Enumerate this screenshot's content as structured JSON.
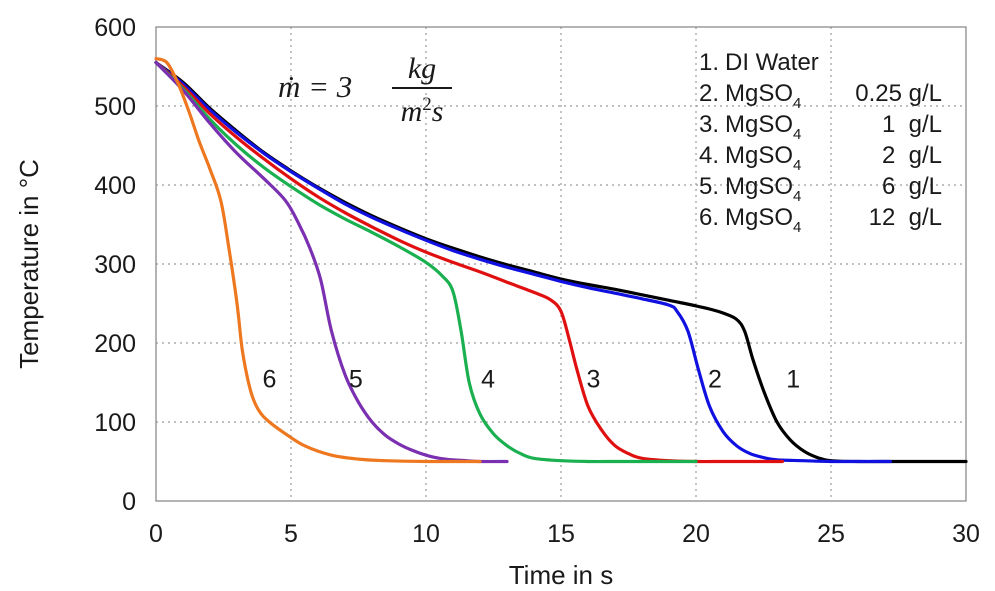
{
  "chart_data": {
    "type": "line",
    "xlabel": "Time in s",
    "ylabel": "Temperature in °C",
    "xlim": [
      0,
      30
    ],
    "ylim": [
      0,
      600
    ],
    "xticks": [
      0,
      5,
      10,
      15,
      20,
      25,
      30
    ],
    "yticks": [
      0,
      100,
      200,
      300,
      400,
      500,
      600
    ],
    "grid": true,
    "formula": {
      "lhs": "ṁ = 3",
      "numerator": "kg",
      "denominator_base": "m",
      "denominator_exp": "2",
      "denominator_tail": "s"
    },
    "legend": {
      "placement": "top-right",
      "entries": [
        {
          "index": "1.",
          "name": "DI Water",
          "sub": "",
          "conc": ""
        },
        {
          "index": "2.",
          "name": "MgSO",
          "sub": "4",
          "conc": "0.25 g/L"
        },
        {
          "index": "3.",
          "name": "MgSO",
          "sub": "4",
          "conc": "1  g/L"
        },
        {
          "index": "4.",
          "name": "MgSO",
          "sub": "4",
          "conc": "2  g/L"
        },
        {
          "index": "5.",
          "name": "MgSO",
          "sub": "4",
          "conc": "6  g/L"
        },
        {
          "index": "6.",
          "name": "MgSO",
          "sub": "4",
          "conc": "12  g/L"
        }
      ]
    },
    "series": [
      {
        "label": "1",
        "color": "#000000",
        "label_pos": [
          23.6,
          155
        ],
        "x": [
          0,
          1,
          2,
          3,
          4,
          5,
          6,
          7,
          8,
          9,
          10,
          11,
          12,
          13,
          14,
          15,
          16,
          17,
          18,
          19,
          20,
          20.5,
          21,
          21.5,
          21.8,
          22.1,
          22.5,
          23,
          23.5,
          24,
          24.5,
          25,
          26,
          27,
          28,
          29,
          30
        ],
        "y": [
          555,
          530,
          497,
          468,
          441,
          418,
          397,
          378,
          361,
          346,
          332,
          320,
          309,
          299,
          290,
          281,
          274,
          268,
          261,
          254,
          247,
          243,
          238,
          230,
          215,
          180,
          140,
          100,
          77,
          63,
          55,
          51,
          50,
          50,
          50,
          50,
          50
        ]
      },
      {
        "label": "2",
        "color": "#1010e0",
        "label_pos": [
          20.7,
          155
        ],
        "x": [
          0,
          1,
          2,
          3,
          4,
          5,
          6,
          7,
          8,
          9,
          10,
          11,
          12,
          13,
          14,
          15,
          16,
          17,
          18,
          19,
          19.3,
          19.7,
          20.1,
          20.5,
          21,
          21.5,
          22,
          22.5,
          23,
          24,
          25,
          26,
          27.2
        ],
        "y": [
          555,
          528,
          495,
          466,
          440,
          417,
          396,
          376,
          359,
          344,
          330,
          317,
          306,
          296,
          287,
          278,
          270,
          263,
          256,
          248,
          240,
          215,
          165,
          120,
          88,
          70,
          60,
          55,
          52,
          51,
          50,
          50,
          50
        ]
      },
      {
        "label": "3",
        "color": "#e01010",
        "label_pos": [
          16.2,
          155
        ],
        "x": [
          0,
          1,
          2,
          3,
          4,
          5,
          6,
          7,
          8,
          9,
          10,
          11,
          12,
          13,
          14,
          14.6,
          15,
          15.3,
          15.6,
          16,
          16.5,
          17,
          17.5,
          18,
          19,
          20,
          21,
          22,
          23.2
        ],
        "y": [
          555,
          525,
          490,
          460,
          433,
          408,
          385,
          365,
          347,
          330,
          315,
          302,
          290,
          277,
          264,
          255,
          240,
          205,
          165,
          120,
          90,
          70,
          60,
          54,
          51,
          50,
          50,
          50,
          50
        ]
      },
      {
        "label": "4",
        "color": "#1ab050",
        "label_pos": [
          12.3,
          155
        ],
        "x": [
          0,
          1,
          2,
          3,
          4,
          5,
          6,
          7,
          8,
          9,
          10,
          10.6,
          11,
          11.3,
          11.6,
          12,
          12.5,
          13,
          13.5,
          14,
          15,
          16,
          17,
          18,
          19,
          20
        ],
        "y": [
          555,
          522,
          483,
          450,
          422,
          398,
          376,
          357,
          340,
          322,
          302,
          285,
          265,
          215,
          150,
          110,
          85,
          70,
          60,
          54,
          51,
          50,
          50,
          50,
          50,
          50
        ]
      },
      {
        "label": "5",
        "color": "#7a30b0",
        "label_pos": [
          7.4,
          155
        ],
        "x": [
          0,
          1,
          2,
          3,
          4,
          4.8,
          5.3,
          5.7,
          6.1,
          6.5,
          7,
          7.5,
          8,
          8.5,
          9,
          9.5,
          10,
          10.5,
          11,
          11.5,
          12,
          13
        ],
        "y": [
          555,
          520,
          478,
          440,
          408,
          380,
          350,
          320,
          280,
          215,
          160,
          125,
          100,
          83,
          72,
          64,
          58,
          54,
          52,
          51,
          50,
          50
        ]
      },
      {
        "label": "6",
        "color": "#ee7820",
        "label_pos": [
          4.2,
          155
        ],
        "x": [
          0,
          0.4,
          0.8,
          1.2,
          1.6,
          2,
          2.4,
          2.7,
          3,
          3.2,
          3.5,
          3.8,
          4.2,
          4.8,
          5.5,
          6.5,
          7.5,
          8.5,
          10,
          11,
          12
        ],
        "y": [
          560,
          555,
          530,
          495,
          455,
          420,
          380,
          320,
          250,
          190,
          140,
          115,
          100,
          85,
          70,
          58,
          53,
          51,
          50,
          50,
          50
        ]
      }
    ]
  }
}
